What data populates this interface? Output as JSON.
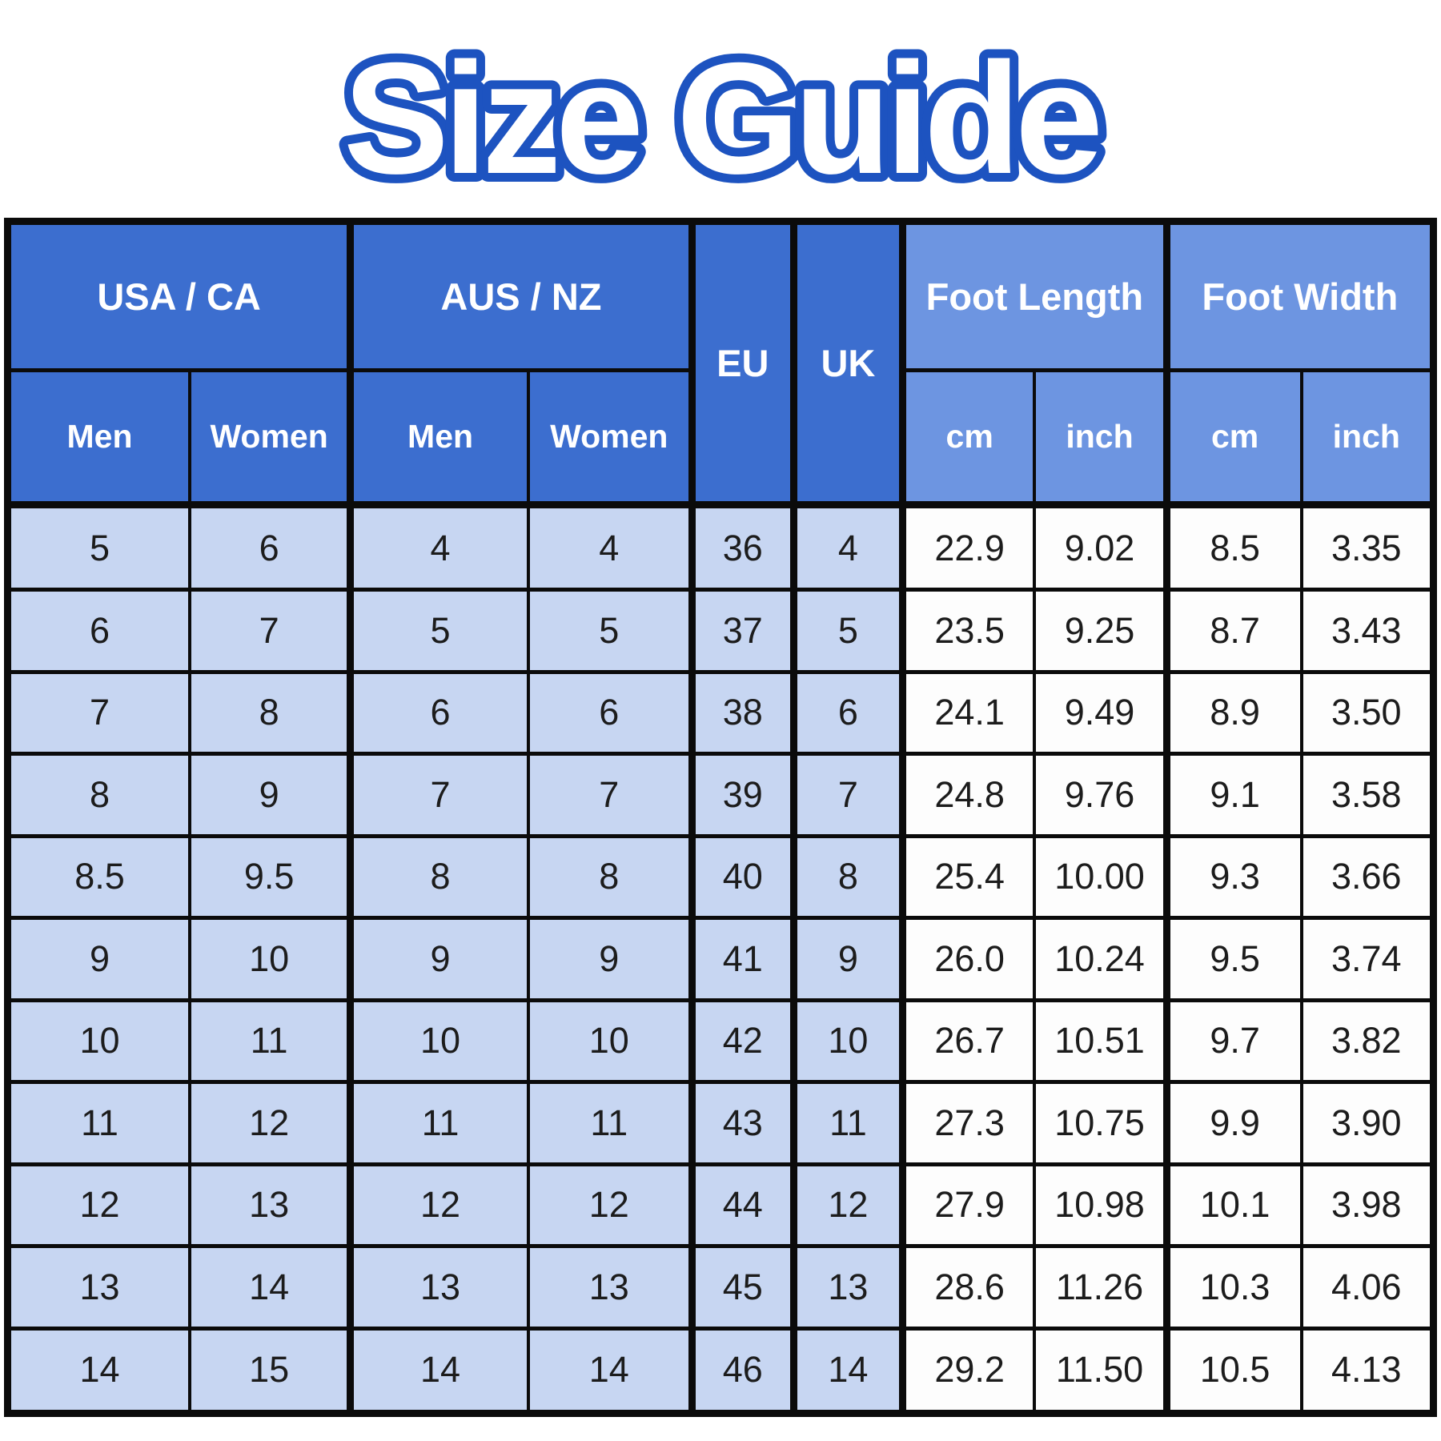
{
  "title": "Size Guide",
  "colors": {
    "title_blue": "#1d53c0",
    "header_dark": "#3c6ecf",
    "header_light": "#6d95e1",
    "row_blue": "#c7d6f2",
    "row_white": "#fdfdfd",
    "border": "#0b0b0b"
  },
  "table": {
    "groups": [
      {
        "label": "USA / CA",
        "children": [
          "Men",
          "Women"
        ]
      },
      {
        "label": "AUS / NZ",
        "children": [
          "Men",
          "Women"
        ]
      },
      {
        "label": "EU",
        "children": []
      },
      {
        "label": "UK",
        "children": []
      },
      {
        "label": "Foot Length",
        "children": [
          "cm",
          "inch"
        ]
      },
      {
        "label": "Foot Width",
        "children": [
          "cm",
          "inch"
        ]
      }
    ],
    "rows": [
      [
        "5",
        "6",
        "4",
        "4",
        "36",
        "4",
        "22.9",
        "9.02",
        "8.5",
        "3.35"
      ],
      [
        "6",
        "7",
        "5",
        "5",
        "37",
        "5",
        "23.5",
        "9.25",
        "8.7",
        "3.43"
      ],
      [
        "7",
        "8",
        "6",
        "6",
        "38",
        "6",
        "24.1",
        "9.49",
        "8.9",
        "3.50"
      ],
      [
        "8",
        "9",
        "7",
        "7",
        "39",
        "7",
        "24.8",
        "9.76",
        "9.1",
        "3.58"
      ],
      [
        "8.5",
        "9.5",
        "8",
        "8",
        "40",
        "8",
        "25.4",
        "10.00",
        "9.3",
        "3.66"
      ],
      [
        "9",
        "10",
        "9",
        "9",
        "41",
        "9",
        "26.0",
        "10.24",
        "9.5",
        "3.74"
      ],
      [
        "10",
        "11",
        "10",
        "10",
        "42",
        "10",
        "26.7",
        "10.51",
        "9.7",
        "3.82"
      ],
      [
        "11",
        "12",
        "11",
        "11",
        "43",
        "11",
        "27.3",
        "10.75",
        "9.9",
        "3.90"
      ],
      [
        "12",
        "13",
        "12",
        "12",
        "44",
        "12",
        "27.9",
        "10.98",
        "10.1",
        "3.98"
      ],
      [
        "13",
        "14",
        "13",
        "13",
        "45",
        "13",
        "28.6",
        "11.26",
        "10.3",
        "4.06"
      ],
      [
        "14",
        "15",
        "14",
        "14",
        "46",
        "14",
        "29.2",
        "11.50",
        "10.5",
        "4.13"
      ]
    ]
  }
}
